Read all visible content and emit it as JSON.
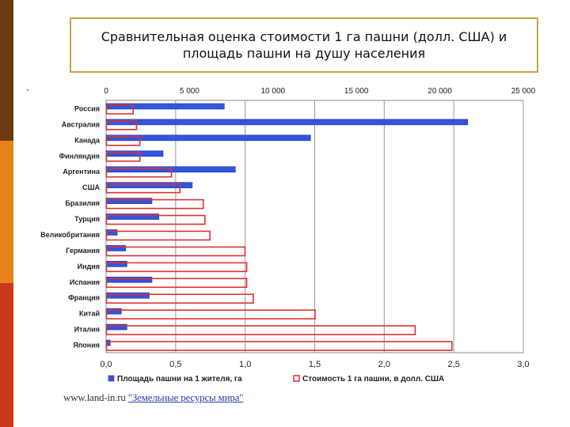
{
  "slide": {
    "title": "Сравнительная оценка стоимости 1 га пашни (долл. США) и\nплощадь пашни на душу населения",
    "source_site": "www.land-in.ru",
    "source_link": "\"Земельные ресурсы мира\"",
    "colors": {
      "stripe_top": "#6b3a12",
      "stripe_mid": "#e8821a",
      "stripe_bottom": "#c8391c",
      "title_border": "#c9a640"
    }
  },
  "chart_data": {
    "type": "bar",
    "orientation": "horizontal",
    "categories": [
      "Россия",
      "Австралия",
      "Канада",
      "Финляндия",
      "Аргентина",
      "США",
      "Бразилия",
      "Турция",
      "Великобритания",
      "Германия",
      "Индия",
      "Испания",
      "Франция",
      "Китай",
      "Италия",
      "Япония"
    ],
    "series": [
      {
        "name": "Площадь пашни на 1 жителя, га",
        "axis": "bottom",
        "color": "#3355dd",
        "values": [
          0.85,
          2.6,
          1.47,
          0.41,
          0.93,
          0.62,
          0.33,
          0.38,
          0.08,
          0.14,
          0.15,
          0.33,
          0.31,
          0.11,
          0.15,
          0.03
        ]
      },
      {
        "name": "Стоимость 1 га пашни, в долл. США",
        "axis": "top",
        "color": "#e03030",
        "values": [
          1600,
          1800,
          2000,
          2000,
          3900,
          4400,
          5800,
          5900,
          6200,
          8300,
          8400,
          8400,
          8800,
          12500,
          18500,
          20700
        ]
      }
    ],
    "top_axis": {
      "min": 0,
      "max": 25000,
      "ticks": [
        0,
        5000,
        10000,
        15000,
        20000,
        25000
      ],
      "tick_labels": [
        "0",
        "5 000",
        "10 000",
        "15 000",
        "20 000",
        "25 000"
      ]
    },
    "bottom_axis": {
      "min": 0,
      "max": 3.0,
      "ticks": [
        0,
        0.5,
        1.0,
        1.5,
        2.0,
        2.5,
        3.0
      ],
      "tick_labels": [
        "0,0",
        "0,5",
        "1,0",
        "1,5",
        "2,0",
        "2,5",
        "3,0"
      ]
    },
    "grid": true,
    "legend_position": "bottom"
  }
}
